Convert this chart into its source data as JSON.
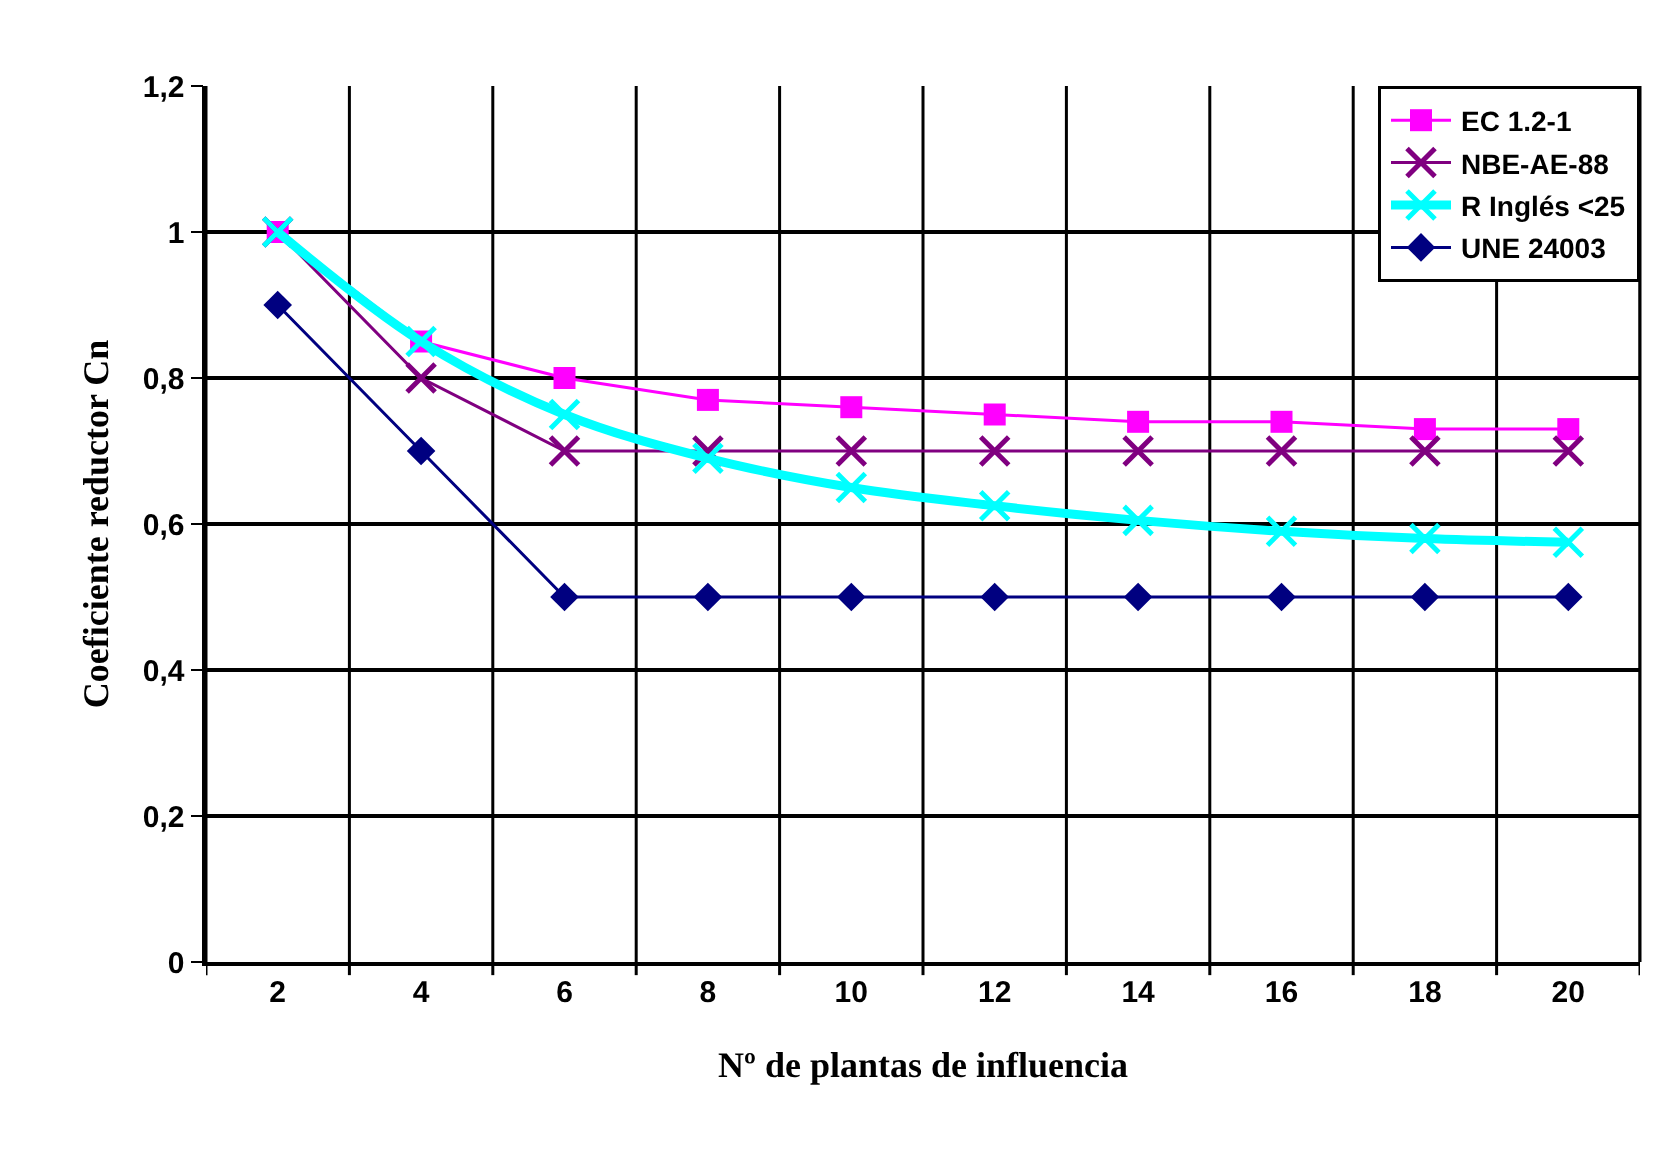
{
  "chart_data": {
    "type": "line",
    "xlabel": "Nº de plantas de influencia",
    "ylabel": "Coeficiente reductor Cn",
    "categories": [
      "2",
      "4",
      "6",
      "8",
      "10",
      "12",
      "14",
      "16",
      "18",
      "20"
    ],
    "ylim": [
      0,
      1.2
    ],
    "yticks": [
      0,
      {
        "value": 0.2,
        "label": "0,2"
      },
      {
        "value": 0.4,
        "label": "0,4"
      },
      {
        "value": 0.6,
        "label": "0,6"
      },
      {
        "value": 0.8,
        "label": "0,8"
      },
      1,
      {
        "value": 1.2,
        "label": "1,2"
      }
    ],
    "grid": true,
    "legend": "top right",
    "line_style": "solid",
    "series": [
      {
        "name": "EC 1.2-1",
        "color": "#ff00ff",
        "marker": "square",
        "values": [
          1,
          0.85,
          0.8,
          0.77,
          0.76,
          0.75,
          0.74,
          0.74,
          0.73,
          0.73
        ]
      },
      {
        "name": "NBE-AE-88",
        "color": "#800080",
        "marker": "cross",
        "values": [
          1,
          0.8,
          0.7,
          0.7,
          0.7,
          0.7,
          0.7,
          0.7,
          0.7,
          0.7
        ]
      },
      {
        "name": "R Inglés <25",
        "color": "#00ffff",
        "marker": "cross",
        "values": [
          1,
          0.85,
          0.75,
          0.69,
          0.65,
          0.625,
          0.605,
          0.59,
          0.58,
          0.575
        ]
      },
      {
        "name": "UNE 24003",
        "color": "#000080",
        "marker": "diamond",
        "values": [
          0.9,
          0.7,
          0.5,
          0.5,
          0.5,
          0.5,
          0.5,
          0.5,
          0.5,
          0.5
        ]
      }
    ]
  }
}
